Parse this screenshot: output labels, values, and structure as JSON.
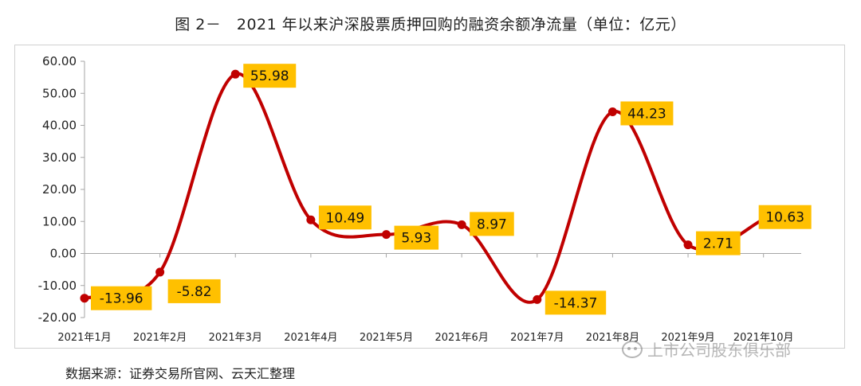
{
  "title": "图 2－　2021 年以来沪深股票质押回购的融资余额净流量（单位：亿元）",
  "source": "数据来源：证券交易所官网、云天汇整理",
  "watermark": "上市公司股东俱乐部",
  "colors": {
    "line": "#c00000",
    "label_bg": "#ffc000",
    "grid": "#d9d9d9",
    "axis": "#a6a6a6"
  },
  "chart_data": {
    "type": "line",
    "categories": [
      "2021年1月",
      "2021年2月",
      "2021年3月",
      "2021年4月",
      "2021年5月",
      "2021年6月",
      "2021年7月",
      "2021年8月",
      "2021年9月",
      "2021年10月"
    ],
    "values": [
      -13.96,
      -5.82,
      55.98,
      10.49,
      5.93,
      8.97,
      -14.37,
      44.23,
      2.71,
      10.63
    ],
    "data_labels": [
      "-13.96",
      "-5.82",
      "55.98",
      "10.49",
      "5.93",
      "8.97",
      "-14.37",
      "44.23",
      "2.71",
      "10.63"
    ],
    "y_ticks": [
      "60.00",
      "50.00",
      "40.00",
      "30.00",
      "20.00",
      "10.00",
      "0.00",
      "-10.00",
      "-20.00"
    ],
    "ylim": [
      -20,
      60
    ],
    "grid": false,
    "smooth": true,
    "legend": "none"
  }
}
